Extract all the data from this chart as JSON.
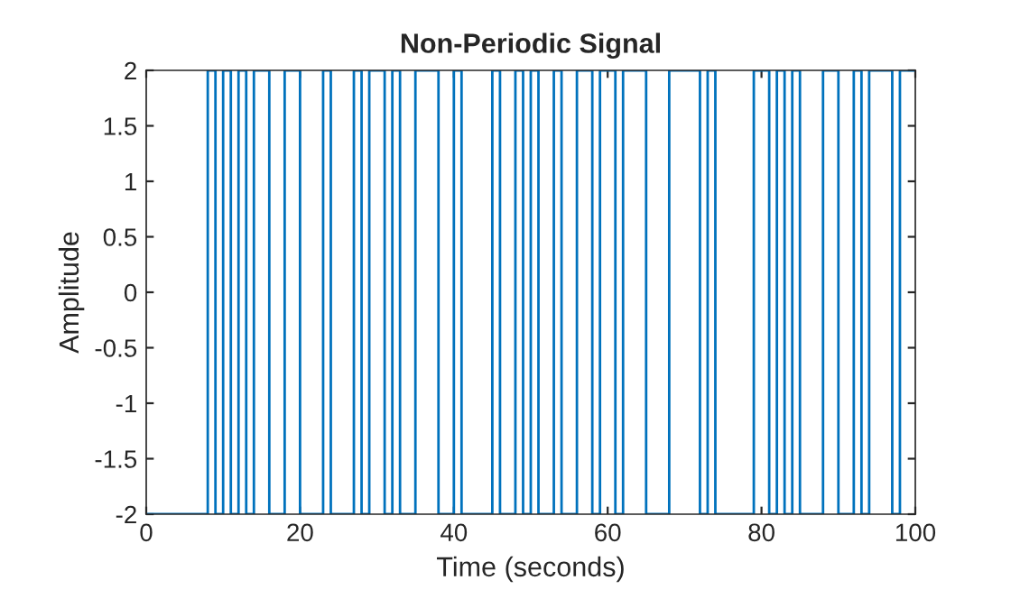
{
  "chart_data": {
    "type": "step",
    "title": "Non-Periodic Signal",
    "xlabel": "Time (seconds)",
    "ylabel": "Amplitude",
    "x": [
      0,
      8,
      9,
      10,
      11,
      12,
      13,
      14,
      16,
      18,
      20,
      23,
      24,
      27,
      28,
      29,
      31,
      32,
      33,
      35,
      38,
      40,
      41,
      45,
      46,
      48,
      49,
      50,
      51,
      53,
      54,
      56,
      58,
      59,
      61,
      62,
      65,
      68,
      72,
      73,
      74,
      79,
      81,
      82,
      83,
      84,
      85,
      88,
      90,
      92,
      93,
      94,
      97,
      98,
      100
    ],
    "series": [
      {
        "color": "#0072bd",
        "values": [
          -2,
          2,
          -2,
          2,
          -2,
          2,
          -2,
          2,
          -2,
          2,
          -2,
          2,
          -2,
          2,
          -2,
          2,
          -2,
          2,
          -2,
          2,
          -2,
          2,
          -2,
          2,
          -2,
          2,
          -2,
          2,
          -2,
          2,
          -2,
          2,
          -2,
          2,
          -2,
          2,
          -2,
          2,
          -2,
          2,
          -2,
          2,
          -2,
          2,
          -2,
          2,
          -2,
          2,
          -2,
          2,
          -2,
          2,
          -2,
          2,
          2
        ]
      }
    ],
    "xlim": [
      0,
      100
    ],
    "xticks": [
      0,
      20,
      40,
      60,
      80,
      100
    ],
    "ylim": [
      -2,
      2
    ],
    "yticks": [
      -2,
      -1.5,
      -1,
      -0.5,
      0,
      0.5,
      1,
      1.5,
      2
    ],
    "grid": false,
    "legend": false
  }
}
